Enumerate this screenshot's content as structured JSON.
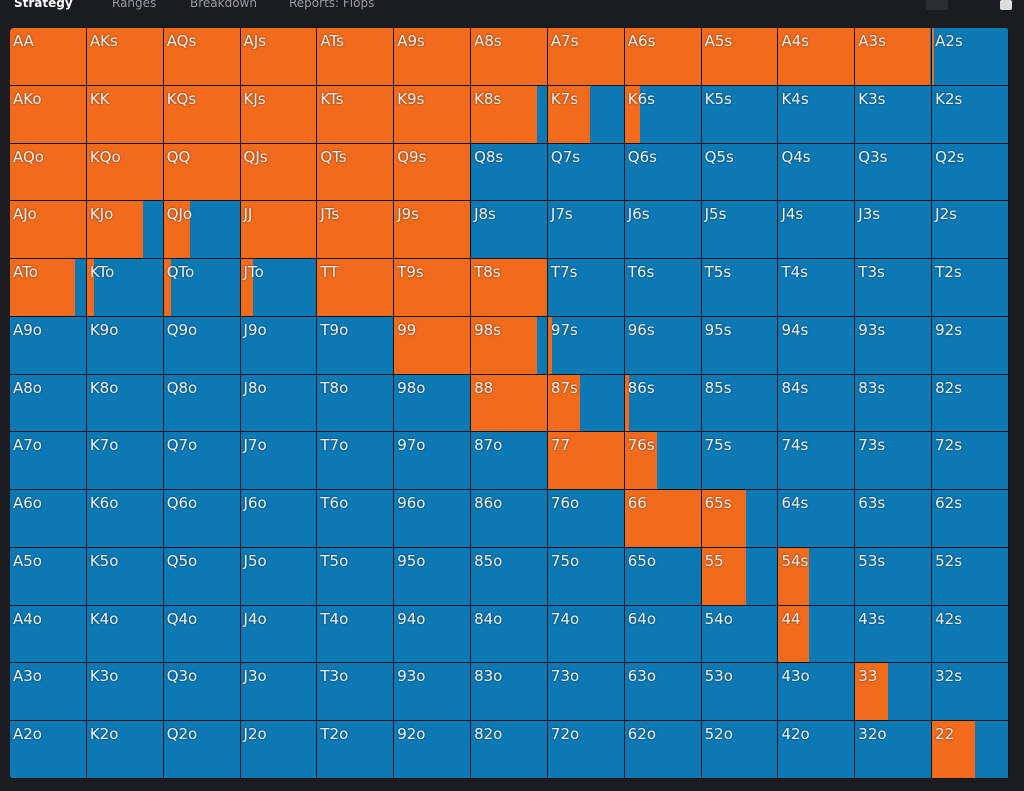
{
  "tabs": [
    "Strategy",
    "Ranges",
    "Breakdown",
    "Reports: Flops"
  ],
  "grid": {
    "hands": [
      [
        "AA",
        "AKs",
        "AQs",
        "AJs",
        "ATs",
        "A9s",
        "A8s",
        "A7s",
        "A6s",
        "A5s",
        "A4s",
        "A3s",
        "A2s"
      ],
      [
        "AKo",
        "KK",
        "KQs",
        "KJs",
        "KTs",
        "K9s",
        "K8s",
        "K7s",
        "K6s",
        "K5s",
        "K4s",
        "K3s",
        "K2s"
      ],
      [
        "AQo",
        "KQo",
        "QQ",
        "QJs",
        "QTs",
        "Q9s",
        "Q8s",
        "Q7s",
        "Q6s",
        "Q5s",
        "Q4s",
        "Q3s",
        "Q2s"
      ],
      [
        "AJo",
        "KJo",
        "QJo",
        "JJ",
        "JTs",
        "J9s",
        "J8s",
        "J7s",
        "J6s",
        "J5s",
        "J4s",
        "J3s",
        "J2s"
      ],
      [
        "ATo",
        "KTo",
        "QTo",
        "JTo",
        "TT",
        "T9s",
        "T8s",
        "T7s",
        "T6s",
        "T5s",
        "T4s",
        "T3s",
        "T2s"
      ],
      [
        "A9o",
        "K9o",
        "Q9o",
        "J9o",
        "T9o",
        "99",
        "98s",
        "97s",
        "96s",
        "95s",
        "94s",
        "93s",
        "92s"
      ],
      [
        "A8o",
        "K8o",
        "Q8o",
        "J8o",
        "T8o",
        "98o",
        "88",
        "87s",
        "86s",
        "85s",
        "84s",
        "83s",
        "82s"
      ],
      [
        "A7o",
        "K7o",
        "Q7o",
        "J7o",
        "T7o",
        "97o",
        "87o",
        "77",
        "76s",
        "75s",
        "74s",
        "73s",
        "72s"
      ],
      [
        "A6o",
        "K6o",
        "Q6o",
        "J6o",
        "T6o",
        "96o",
        "86o",
        "76o",
        "66",
        "65s",
        "64s",
        "63s",
        "62s"
      ],
      [
        "A5o",
        "K5o",
        "Q5o",
        "J5o",
        "T5o",
        "95o",
        "85o",
        "75o",
        "65o",
        "55",
        "54s",
        "53s",
        "52s"
      ],
      [
        "A4o",
        "K4o",
        "Q4o",
        "J4o",
        "T4o",
        "94o",
        "84o",
        "74o",
        "64o",
        "54o",
        "44",
        "43s",
        "42s"
      ],
      [
        "A3o",
        "K3o",
        "Q3o",
        "J3o",
        "T3o",
        "93o",
        "83o",
        "73o",
        "63o",
        "53o",
        "43o",
        "33",
        "32s"
      ],
      [
        "A2o",
        "K2o",
        "Q2o",
        "J2o",
        "T2o",
        "92o",
        "82o",
        "72o",
        "62o",
        "52o",
        "42o",
        "32o",
        "22"
      ]
    ],
    "freq": [
      [
        100,
        100,
        100,
        100,
        100,
        100,
        100,
        100,
        100,
        100,
        100,
        98,
        3
      ],
      [
        100,
        100,
        100,
        100,
        100,
        100,
        87,
        55,
        20,
        0,
        0,
        0,
        0
      ],
      [
        100,
        100,
        100,
        100,
        100,
        100,
        0,
        0,
        0,
        0,
        0,
        0,
        0
      ],
      [
        100,
        74,
        35,
        100,
        100,
        100,
        0,
        0,
        0,
        0,
        0,
        0,
        0
      ],
      [
        86,
        9,
        10,
        16,
        100,
        100,
        100,
        0,
        0,
        0,
        0,
        0,
        0
      ],
      [
        0,
        0,
        0,
        0,
        0,
        100,
        87,
        5,
        0,
        0,
        0,
        0,
        0
      ],
      [
        0,
        0,
        0,
        0,
        0,
        0,
        100,
        42,
        6,
        0,
        0,
        0,
        0
      ],
      [
        0,
        0,
        0,
        0,
        0,
        0,
        0,
        100,
        43,
        0,
        0,
        0,
        0
      ],
      [
        0,
        0,
        0,
        0,
        0,
        0,
        0,
        0,
        100,
        58,
        0,
        0,
        0
      ],
      [
        0,
        0,
        0,
        0,
        0,
        0,
        0,
        0,
        0,
        58,
        40,
        0,
        0
      ],
      [
        0,
        0,
        0,
        0,
        0,
        0,
        0,
        0,
        0,
        0,
        40,
        0,
        0
      ],
      [
        0,
        0,
        0,
        0,
        0,
        0,
        0,
        0,
        0,
        0,
        0,
        43,
        0
      ],
      [
        0,
        0,
        0,
        0,
        0,
        0,
        0,
        0,
        0,
        0,
        0,
        0,
        57
      ]
    ]
  }
}
